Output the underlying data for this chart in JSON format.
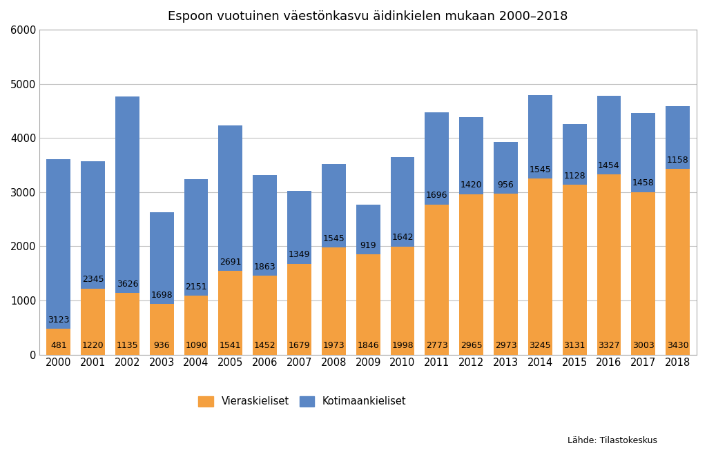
{
  "years": [
    2000,
    2001,
    2002,
    2003,
    2004,
    2005,
    2006,
    2007,
    2008,
    2009,
    2010,
    2011,
    2012,
    2013,
    2014,
    2015,
    2016,
    2017,
    2018
  ],
  "vieraskieliset": [
    481,
    1220,
    1135,
    936,
    1090,
    1541,
    1452,
    1679,
    1973,
    1846,
    1998,
    2773,
    2965,
    2973,
    3245,
    3131,
    3327,
    3003,
    3430
  ],
  "kotimaankieliset": [
    3123,
    2345,
    3626,
    1698,
    2151,
    2691,
    1863,
    1349,
    1545,
    919,
    1642,
    1696,
    1420,
    956,
    1545,
    1128,
    1454,
    1458,
    1158
  ],
  "bar_color_vieras": "#F4A040",
  "bar_color_kotimaa": "#5B87C5",
  "title": "Espoon vuotuinen väestönkasvu äidinkielen mukaan 2000–2018",
  "xlabel": "",
  "ylabel": "",
  "ylim": [
    0,
    6000
  ],
  "yticks": [
    0,
    1000,
    2000,
    3000,
    4000,
    5000,
    6000
  ],
  "legend_vieras": "Vieraskieliset",
  "legend_kotimaa": "Kotimaankieliset",
  "source_text": "Lähde: Tilastokeskus",
  "title_fontsize": 13,
  "tick_fontsize": 10.5,
  "label_fontsize": 9,
  "legend_fontsize": 10.5,
  "background_color": "#FFFFFF",
  "plot_bg_color": "#FFFFFF",
  "grid_color": "#C0C0C0",
  "spine_color": "#AAAAAA"
}
